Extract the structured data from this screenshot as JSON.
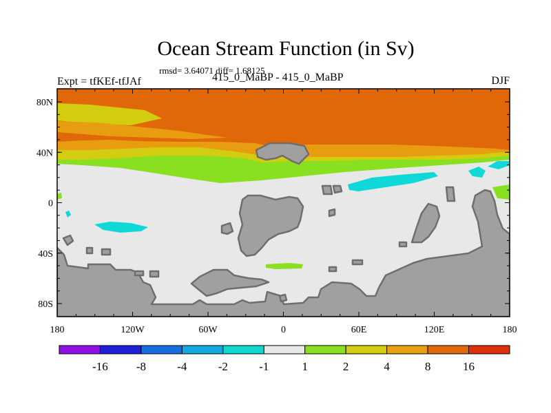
{
  "title": "Ocean Stream Function (in Sv)",
  "stats": "rmsd= 3.64071 diff= 1.68125",
  "expt": "Expt = tfKEf-tfJAf",
  "subtitle": "415_0_MaBP - 415_0_MaBP",
  "season": "DJF",
  "colors": {
    "land": "#a0a0a0",
    "coast": "#6e6e6e",
    "neutral": "#e8e8e8",
    "green": "#88e020",
    "yellow": "#d4cc10",
    "orange_light": "#e89c10",
    "orange": "#e06808",
    "cyan": "#10d8d8"
  },
  "map": {
    "x_ticks": [
      "180",
      "120W",
      "60W",
      "0",
      "60E",
      "120E",
      "180"
    ],
    "y_ticks": [
      "80N",
      "40N",
      "0",
      "40S",
      "80S"
    ]
  },
  "colorbar": {
    "colors": [
      "#9010e8",
      "#2020d8",
      "#1470e0",
      "#10a8e0",
      "#10d8d0",
      "#e8e8e8",
      "#88e020",
      "#d4cc10",
      "#e8a010",
      "#e06808",
      "#e03008"
    ],
    "labels": [
      "-16",
      "-8",
      "-4",
      "-2",
      "-1",
      "1",
      "2",
      "4",
      "8",
      "16"
    ]
  }
}
